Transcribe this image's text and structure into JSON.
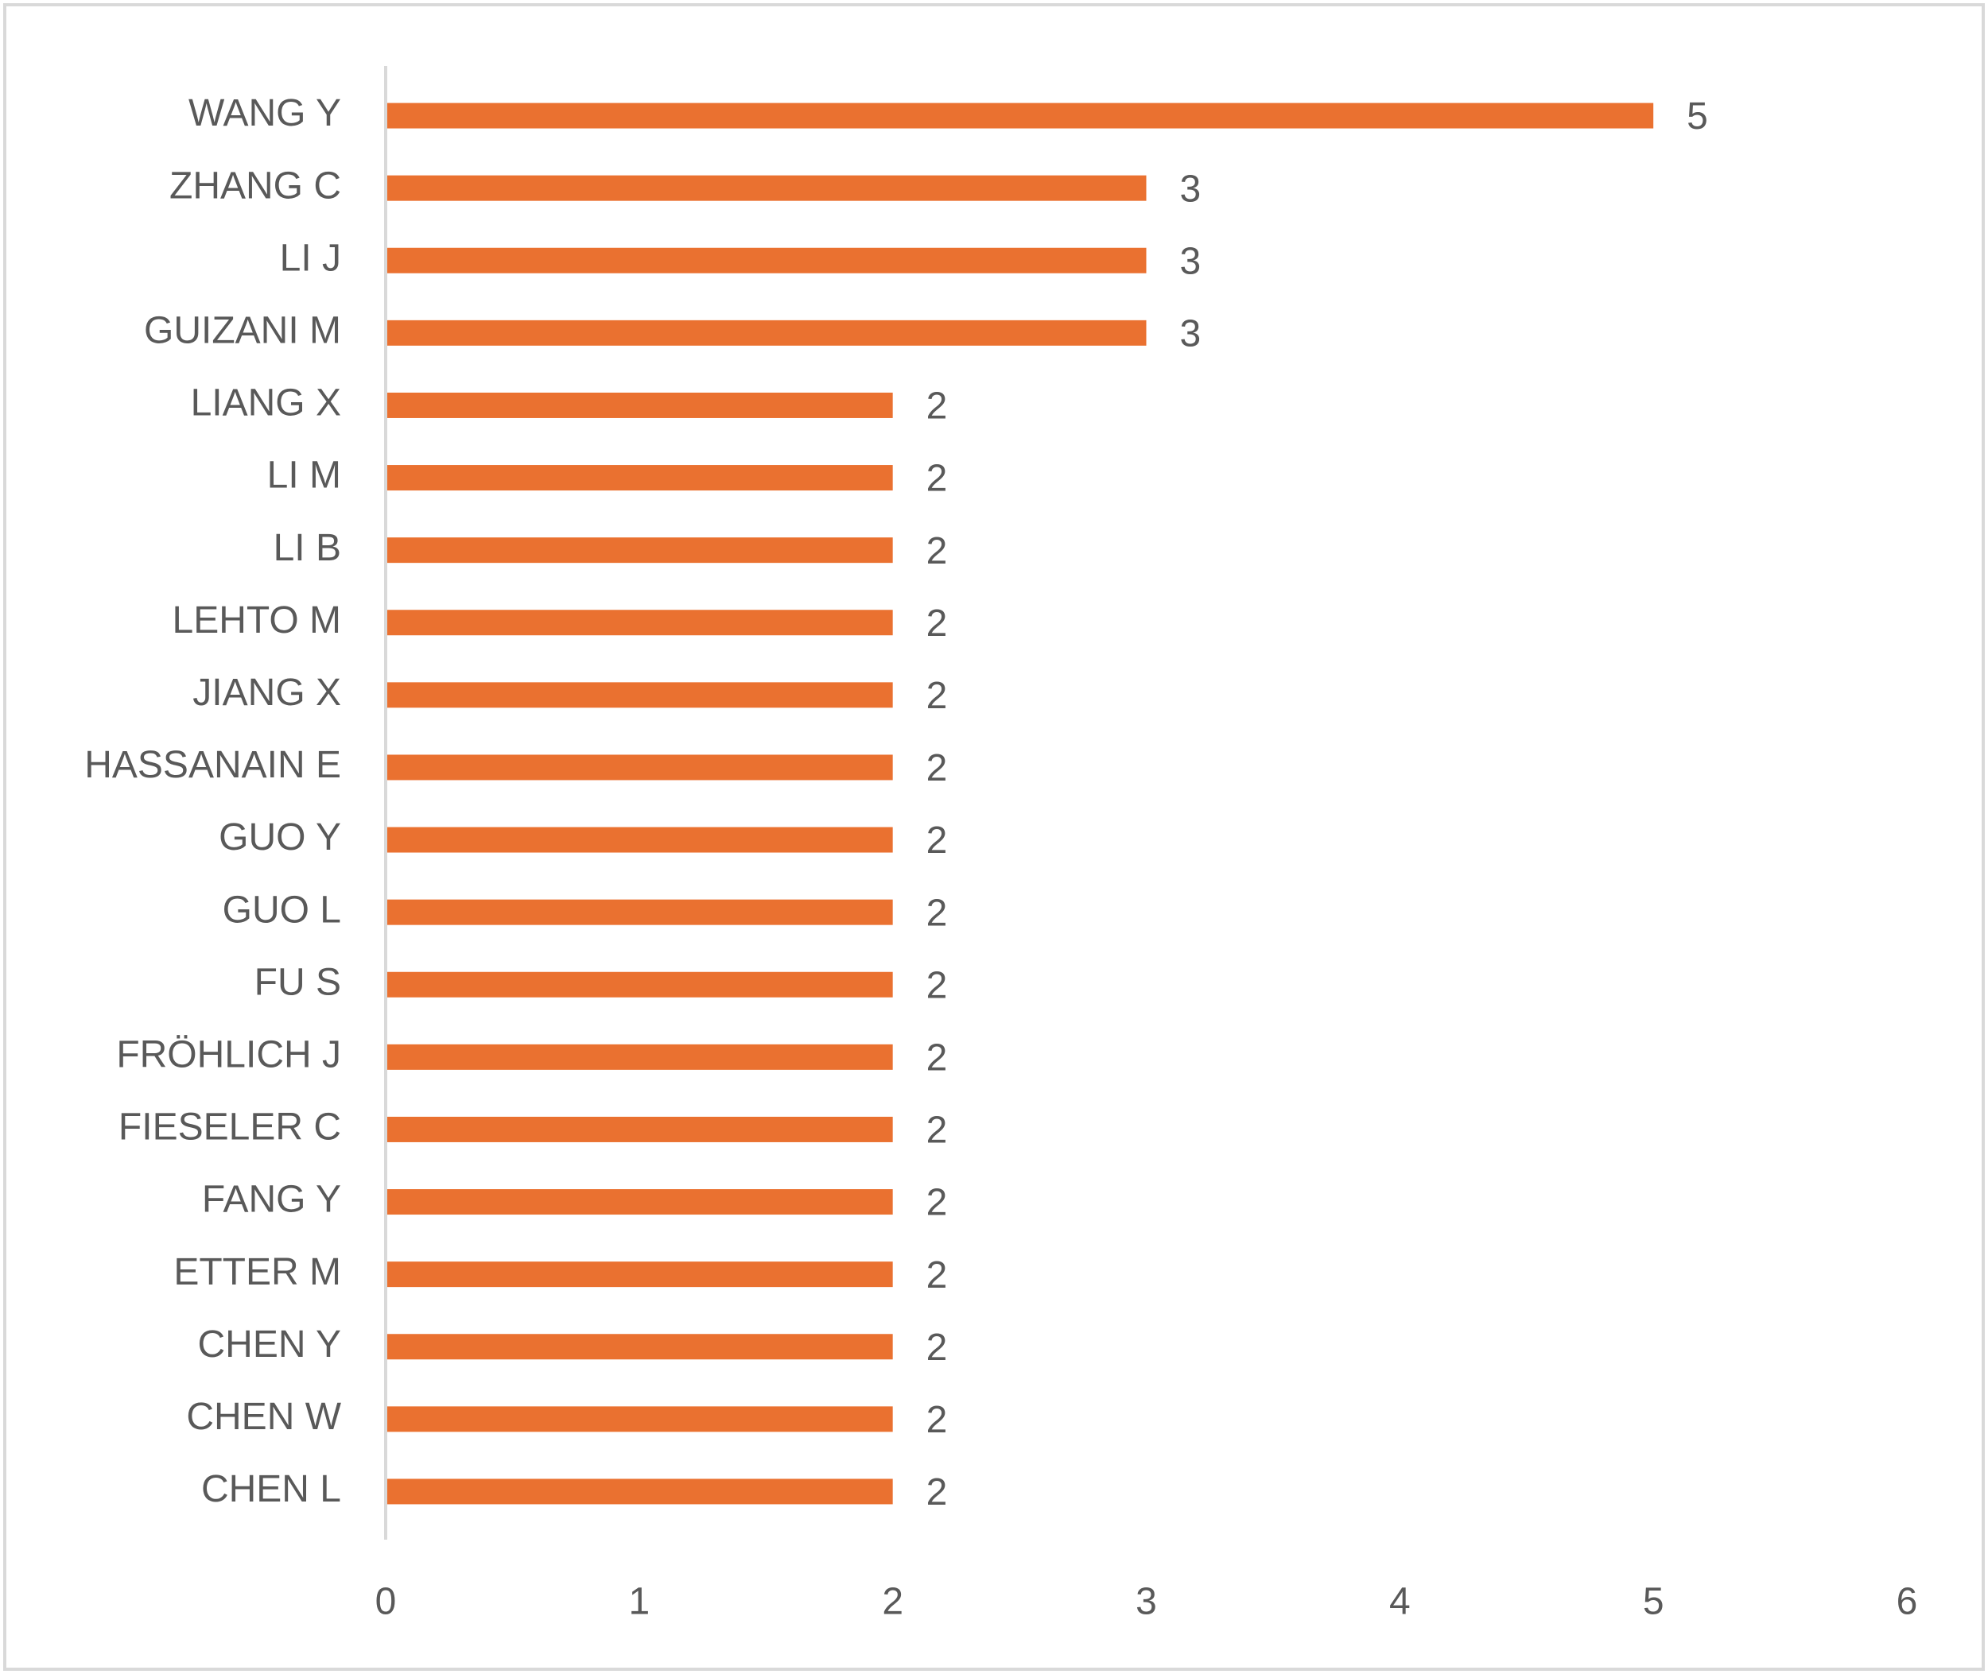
{
  "chart_data": {
    "type": "bar",
    "orientation": "horizontal",
    "categories": [
      "WANG Y",
      "ZHANG C",
      "LI J",
      "GUIZANI M",
      "LIANG X",
      "LI M",
      "LI B",
      "LEHTO M",
      "JIANG X",
      "HASSANAIN E",
      "GUO Y",
      "GUO L",
      "FU S",
      "FRÖHLICH J",
      "FIESELER C",
      "FANG Y",
      "ETTER M",
      "CHEN Y",
      "CHEN W",
      "CHEN L"
    ],
    "values": [
      5,
      3,
      3,
      3,
      2,
      2,
      2,
      2,
      2,
      2,
      2,
      2,
      2,
      2,
      2,
      2,
      2,
      2,
      2,
      2
    ],
    "color": "#ea7130",
    "xlim": [
      0,
      6
    ],
    "xticks": [
      0,
      1,
      2,
      3,
      4,
      5,
      6
    ],
    "grid": false,
    "data_labels": true
  }
}
